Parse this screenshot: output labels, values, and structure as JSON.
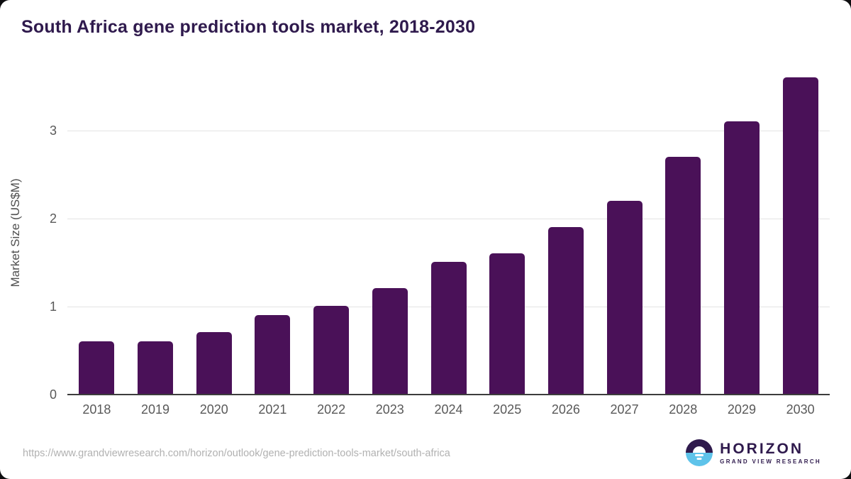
{
  "header": {
    "title": "South Africa gene prediction tools market, 2018-2030"
  },
  "chart_data": {
    "type": "bar",
    "title": "South Africa gene prediction tools market, 2018-2030",
    "categories": [
      "2018",
      "2019",
      "2020",
      "2021",
      "2022",
      "2023",
      "2024",
      "2025",
      "2026",
      "2027",
      "2028",
      "2029",
      "2030"
    ],
    "values": [
      0.6,
      0.6,
      0.7,
      0.9,
      1.0,
      1.2,
      1.5,
      1.6,
      1.9,
      2.2,
      2.7,
      3.1,
      3.6
    ],
    "xlabel": "",
    "ylabel": "Market Size (US$M)",
    "yticks": [
      0,
      1,
      2,
      3
    ],
    "ylim": [
      0,
      3.69
    ],
    "grid": "horizontal",
    "legend": "none",
    "bar_color": "#4a1158"
  },
  "footer": {
    "source_url": "https://www.grandviewresearch.com/horizon/outlook/gene-prediction-tools-market/south-africa",
    "logo": {
      "name": "HORIZON",
      "subtitle": "GRAND VIEW RESEARCH",
      "icon": "horizon-sunset-circle-icon",
      "icon_purple": "#2f1a4d",
      "icon_blue": "#5ec3ea"
    }
  },
  "colors": {
    "title_text": "#2f1a4d",
    "bar": "#4a1158",
    "axis_line": "#3d3d3d",
    "gridline": "#e4e4e4",
    "tick_text": "#595959",
    "url_text": "#b1b1b1",
    "background": "#ffffff"
  }
}
